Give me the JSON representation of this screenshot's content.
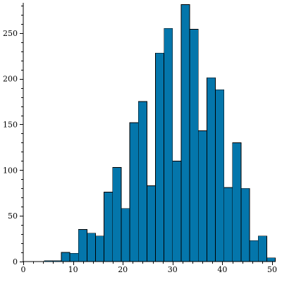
{
  "chart_data": {
    "type": "bar",
    "bin_width": 1.72,
    "bins": [
      {
        "x_start": 4.2,
        "value": 1
      },
      {
        "x_start": 5.92,
        "value": 1
      },
      {
        "x_start": 7.64,
        "value": 10
      },
      {
        "x_start": 9.36,
        "value": 9
      },
      {
        "x_start": 11.08,
        "value": 35
      },
      {
        "x_start": 12.8,
        "value": 31
      },
      {
        "x_start": 14.52,
        "value": 28
      },
      {
        "x_start": 16.24,
        "value": 76
      },
      {
        "x_start": 17.96,
        "value": 103
      },
      {
        "x_start": 19.68,
        "value": 58
      },
      {
        "x_start": 21.4,
        "value": 152
      },
      {
        "x_start": 23.12,
        "value": 175
      },
      {
        "x_start": 24.84,
        "value": 83
      },
      {
        "x_start": 26.56,
        "value": 228
      },
      {
        "x_start": 28.28,
        "value": 255
      },
      {
        "x_start": 30.0,
        "value": 110
      },
      {
        "x_start": 31.72,
        "value": 281
      },
      {
        "x_start": 33.44,
        "value": 254
      },
      {
        "x_start": 35.16,
        "value": 143
      },
      {
        "x_start": 36.88,
        "value": 201
      },
      {
        "x_start": 38.6,
        "value": 188
      },
      {
        "x_start": 40.32,
        "value": 81
      },
      {
        "x_start": 42.04,
        "value": 130
      },
      {
        "x_start": 43.76,
        "value": 80
      },
      {
        "x_start": 45.48,
        "value": 23
      },
      {
        "x_start": 47.2,
        "value": 28
      },
      {
        "x_start": 48.92,
        "value": 4
      }
    ],
    "xlim": [
      0,
      50
    ],
    "ylim": [
      0,
      283
    ],
    "x_ticks": [
      0,
      10,
      20,
      30,
      40,
      50
    ],
    "y_ticks": [
      0,
      50,
      100,
      150,
      200,
      250
    ],
    "bar_color": "#0476ab",
    "grid": false,
    "title": "",
    "xlabel": "",
    "ylabel": ""
  }
}
